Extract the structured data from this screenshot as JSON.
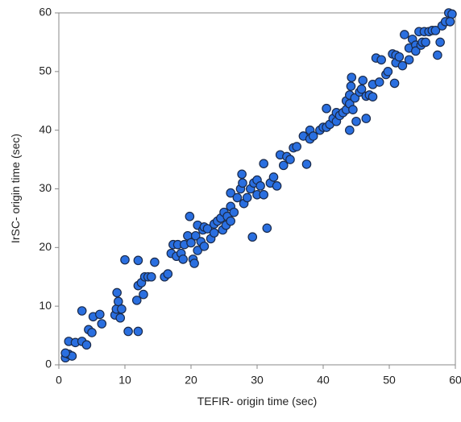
{
  "chart_data": {
    "type": "scatter",
    "xlabel": "TEFIR- origin time (sec)",
    "ylabel": "IrSC- origin time (sec)",
    "color": "#2a6fe0",
    "x": [
      1,
      1.5,
      2,
      1,
      1.5,
      2.5,
      3.5,
      4.2,
      3.5,
      4.5,
      5,
      5.2,
      6.2,
      6.5,
      8.5,
      8.7,
      8.8,
      9,
      9.3,
      9.5,
      10,
      10.5,
      12,
      12,
      11.8,
      12,
      12.5,
      12.8,
      13,
      13.5,
      14,
      14.5,
      16,
      16.5,
      17,
      17.3,
      17.8,
      18,
      18.5,
      18.8,
      19,
      19.5,
      19.8,
      20,
      20.3,
      20.5,
      20.7,
      21,
      21,
      21.5,
      21.8,
      22,
      22,
      22.5,
      23,
      23.5,
      23.5,
      24,
      24.5,
      24.8,
      25,
      25.5,
      25.3,
      26,
      26,
      26,
      26.5,
      27,
      27.5,
      27.8,
      27.7,
      28,
      28.5,
      29,
      29.3,
      29.5,
      30,
      30,
      30.5,
      31,
      31,
      31.5,
      32,
      32.5,
      33,
      33.5,
      34,
      34.5,
      35,
      35.5,
      36,
      37,
      37.5,
      38,
      38,
      38.5,
      39.5,
      40,
      40.5,
      40.5,
      41,
      41.5,
      42,
      42,
      42.5,
      43,
      43.5,
      43.5,
      44,
      44,
      44.2,
      44.3,
      44,
      44.5,
      44.8,
      45,
      45.5,
      46,
      45.8,
      46.5,
      46.5,
      47,
      47.5,
      47.5,
      48,
      48.5,
      48.8,
      49.5,
      49.8,
      50.5,
      50.8,
      51,
      51,
      51.5,
      52,
      52.3,
      53,
      53,
      53.5,
      54,
      54,
      54.5,
      54.8,
      55,
      55.3,
      55.5,
      56,
      56.5,
      57,
      57.3,
      57.7,
      58,
      58.5,
      59,
      59.5,
      59.2
    ],
    "values": [
      1.2,
      1.8,
      1.5,
      2,
      4,
      3.8,
      4,
      3.4,
      9.2,
      6,
      5.5,
      8.2,
      8.6,
      7,
      8.5,
      9.5,
      12.3,
      10.8,
      8,
      9.5,
      17.9,
      5.7,
      5.7,
      17.8,
      11,
      13.5,
      14,
      12,
      15,
      15,
      15,
      17.5,
      15,
      15.5,
      19,
      20.5,
      18.5,
      20.5,
      19,
      18,
      20.5,
      22,
      25.3,
      20.8,
      18,
      17.3,
      22,
      23.8,
      19.5,
      21,
      23,
      23.5,
      20.2,
      23.2,
      21.5,
      24,
      22.5,
      24.5,
      25,
      23,
      26,
      25.3,
      23.8,
      24.5,
      27,
      29.3,
      26,
      28.5,
      30,
      31,
      32.5,
      27.5,
      28.5,
      30,
      21.8,
      31,
      31.5,
      29,
      30.5,
      34.3,
      29,
      23.3,
      31,
      32,
      30.5,
      35.8,
      34,
      35.5,
      35,
      37,
      37.2,
      39,
      34.2,
      40,
      38.5,
      39,
      40,
      40.5,
      40.5,
      43.7,
      41,
      42,
      41.5,
      43,
      42.5,
      43,
      43.5,
      45,
      44.5,
      46,
      47.5,
      49,
      40,
      43.5,
      45.5,
      41.5,
      46.5,
      48.5,
      47,
      45.8,
      42,
      46,
      45.7,
      47.8,
      52.3,
      48.2,
      52,
      49.5,
      50,
      53,
      48,
      52.8,
      51.5,
      52.5,
      51,
      56.3,
      54,
      52,
      55.5,
      54.5,
      53.5,
      56.8,
      54.5,
      55,
      56.8,
      55,
      56.8,
      57,
      57,
      52.8,
      55,
      57.8,
      58.5,
      60,
      59.8,
      58.5
    ],
    "xlim": [
      0,
      60
    ],
    "ylim": [
      0,
      60
    ],
    "xticks": [
      0,
      10,
      20,
      30,
      40,
      50,
      60
    ],
    "yticks": [
      0,
      10,
      20,
      30,
      40,
      50,
      60
    ]
  }
}
